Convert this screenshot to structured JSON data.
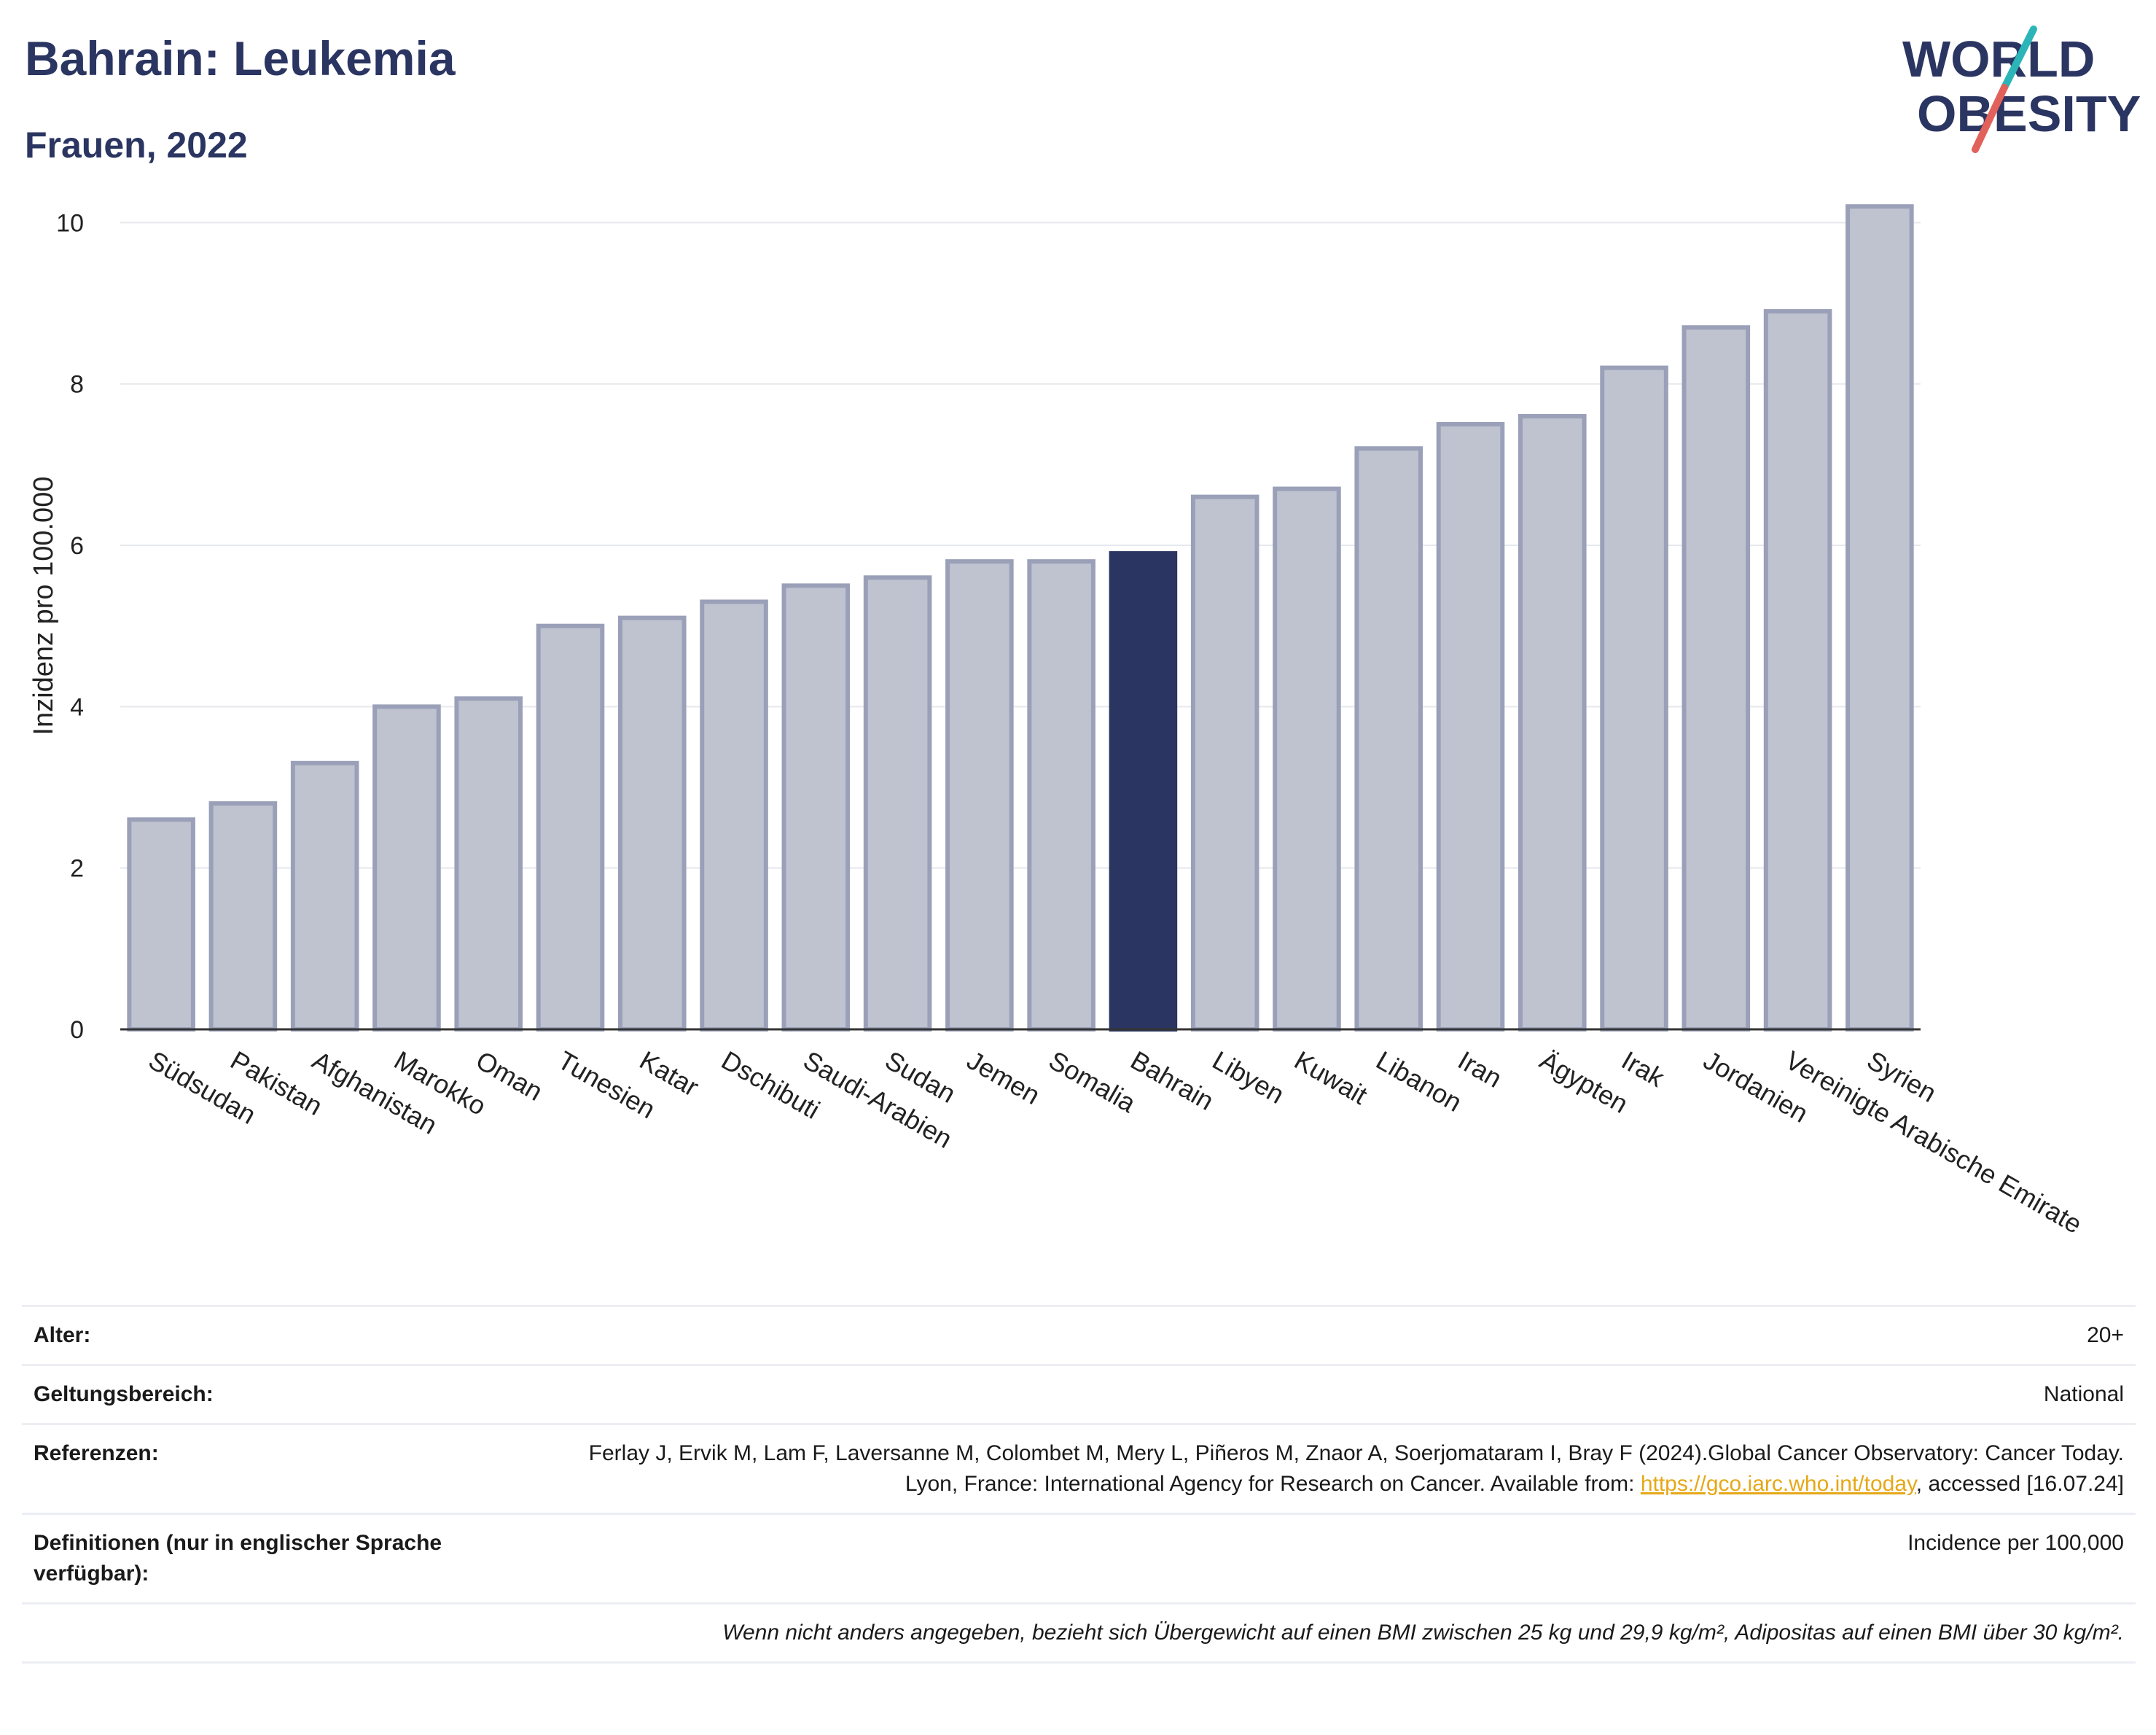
{
  "header": {
    "title": "Bahrain: Leukemia",
    "subtitle": "Frauen, 2022"
  },
  "logo": {
    "line1": "WORLD",
    "line2": "OBESITY",
    "colors": {
      "text": "#2b3561",
      "slash_teal": "#2bb5b8",
      "slash_red": "#e2615a"
    }
  },
  "chart_data": {
    "type": "bar",
    "ylabel": "Inzidenz pro 100.000",
    "xlabel": "",
    "ylim": [
      0,
      10.5
    ],
    "yticks": [
      0,
      2,
      4,
      6,
      8,
      10
    ],
    "grid": true,
    "categories": [
      "Südsudan",
      "Pakistan",
      "Afghanistan",
      "Marokko",
      "Oman",
      "Tunesien",
      "Katar",
      "Dschibuti",
      "Saudi-Arabien",
      "Sudan",
      "Jemen",
      "Somalia",
      "Bahrain",
      "Libyen",
      "Kuwait",
      "Libanon",
      "Iran",
      "Ägypten",
      "Irak",
      "Jordanien",
      "Vereinigte Arabische Emirate",
      "Syrien"
    ],
    "values": [
      2.6,
      2.8,
      3.3,
      4.0,
      4.1,
      5.0,
      5.1,
      5.3,
      5.5,
      5.6,
      5.8,
      5.8,
      5.9,
      6.6,
      6.7,
      7.2,
      7.5,
      7.6,
      8.2,
      8.7,
      8.9,
      10.2
    ],
    "highlight": "Bahrain",
    "colors": {
      "bar": "#bfc3d0",
      "bar_edge": "#9aa0b8",
      "highlight": "#2b3561",
      "grid": "#e6e8ee",
      "axis": "#333333"
    }
  },
  "info": {
    "age_label": "Alter:",
    "age_value": "20+",
    "scope_label": "Geltungsbereich:",
    "scope_value": "National",
    "refs_label": "Referenzen:",
    "refs_text_1": "Ferlay J, Ervik M, Lam F, Laversanne M, Colombet M, Mery L, Piñeros M, Znaor A, Soerjomataram I, Bray F (2024).Global Cancer Observatory: Cancer Today. Lyon, France: International Agency for Research on Cancer. Available from: ",
    "refs_link": "https://gco.iarc.who.int/today",
    "refs_text_2": ", accessed [16.07.24]",
    "defs_label": "Definitionen (nur in englischer Sprache verfügbar):",
    "defs_value": "Incidence per 100,000",
    "note": "Wenn nicht anders angegeben, bezieht sich Übergewicht auf einen BMI zwischen 25 kg und 29,9 kg/m², Adipositas auf einen BMI über 30 kg/m²."
  }
}
